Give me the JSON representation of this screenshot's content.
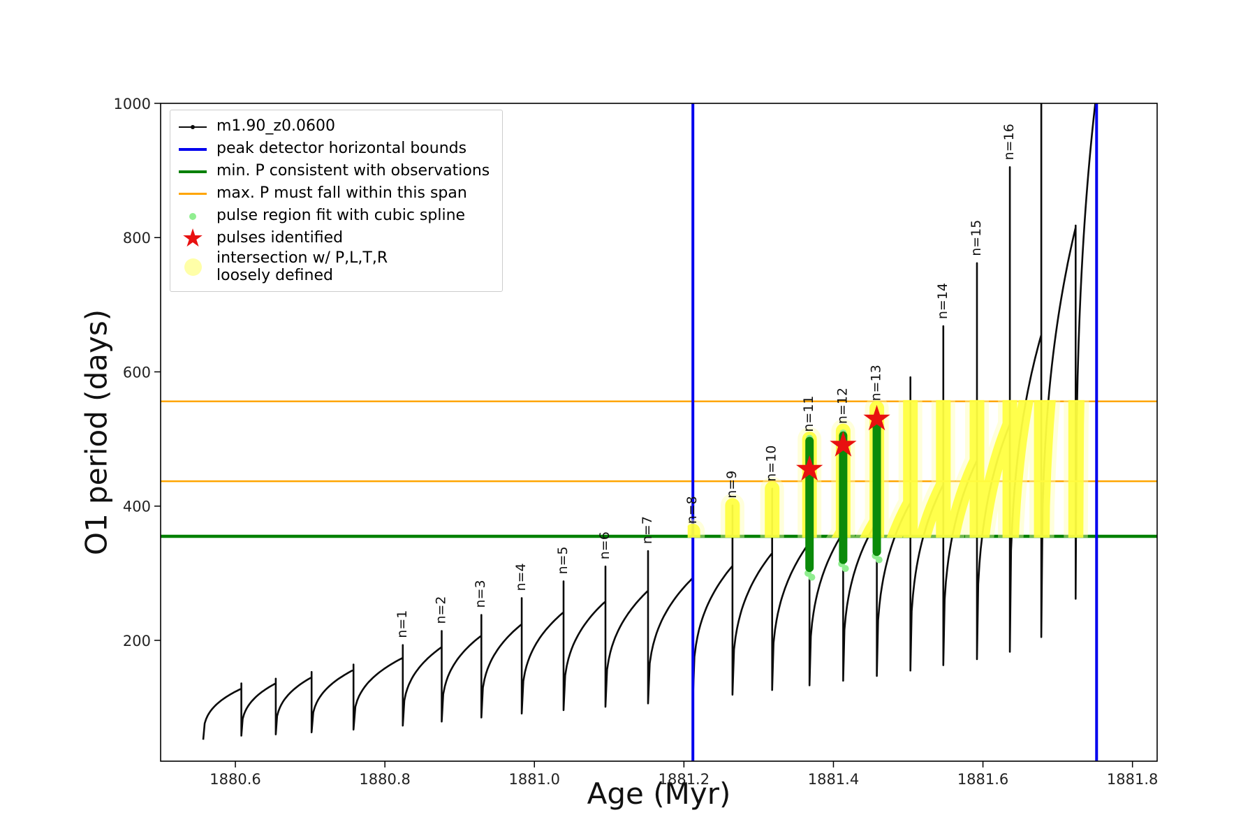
{
  "figure": {
    "xlabel": "Age (Myr)",
    "ylabel": "O1 period (days)",
    "x_tick_labels": [
      "1880.6",
      "1880.8",
      "1881.0",
      "1881.2",
      "1881.4",
      "1881.6",
      "1881.8"
    ],
    "x_tick_values": [
      1880.6,
      1880.8,
      1881.0,
      1881.2,
      1881.4,
      1881.6,
      1881.8
    ],
    "y_tick_labels": [
      "200",
      "400",
      "600",
      "800",
      "1000"
    ],
    "y_tick_values": [
      200,
      400,
      600,
      800,
      1000
    ]
  },
  "colors": {
    "series": "#0b0b0b",
    "bounds": "#0000ee",
    "min_p": "#008000",
    "max_p": "#ffa500",
    "spline": "#90ee90",
    "pulse": "#e81010",
    "intersection": "#ffff3b",
    "intersection_pale": "#ffffb0",
    "bars": "#0a8a0a"
  },
  "legend": {
    "items": [
      {
        "label": "m1.90_z0.0600",
        "type": "line-dot",
        "color": "#0b0b0b"
      },
      {
        "label": "peak detector horizontal bounds",
        "type": "line",
        "color": "#0000ee"
      },
      {
        "label": "min. P consistent with observations",
        "type": "line",
        "color": "#008000"
      },
      {
        "label": "max. P must fall within this span",
        "type": "line-med",
        "color": "#ffa500"
      },
      {
        "label": "pulse region fit with cubic spline",
        "type": "dot",
        "color": "#90ee90"
      },
      {
        "label": "pulses identified",
        "type": "star",
        "color": "#e81010"
      },
      {
        "label": "intersection w/ P,L,T,R\nloosely defined",
        "type": "dot-large",
        "color": "#ffffa8"
      }
    ]
  },
  "chart_data": {
    "type": "line",
    "title": "",
    "xlabel": "Age (Myr)",
    "ylabel": "O1 period (days)",
    "series_name": "m1.90_z0.0600",
    "xlim": [
      1880.5,
      1881.833
    ],
    "ylim": [
      20,
      1000
    ],
    "grid": false,
    "legend_position": "upper left",
    "vlines": [
      1881.212,
      1881.752
    ],
    "hline_green": 355,
    "hlines_orange": [
      437,
      556
    ],
    "band": {
      "x0": 1881.205,
      "x1": 1881.76,
      "y0": 353,
      "y1": 558
    },
    "pulses": [
      {
        "x": 1881.368,
        "y": 456
      },
      {
        "x": 1881.413,
        "y": 492
      },
      {
        "x": 1881.458,
        "y": 531
      }
    ],
    "pulse_regions": [
      {
        "x": 1881.368,
        "y0": 308,
        "y1": 497
      },
      {
        "x": 1881.413,
        "y0": 320,
        "y1": 505
      },
      {
        "x": 1881.458,
        "y0": 332,
        "y1": 520
      }
    ],
    "spline_dots": [
      {
        "x": 1881.366,
        "y": 300
      },
      {
        "x": 1881.371,
        "y": 294
      },
      {
        "x": 1881.411,
        "y": 314
      },
      {
        "x": 1881.416,
        "y": 307
      },
      {
        "x": 1881.456,
        "y": 326
      },
      {
        "x": 1881.461,
        "y": 320
      },
      {
        "x": 1881.368,
        "y": 501
      },
      {
        "x": 1881.413,
        "y": 509
      },
      {
        "x": 1881.458,
        "y": 524
      }
    ],
    "cycles": [
      {
        "x0": 1880.557,
        "x1": 1880.608,
        "yLow": 52,
        "yArc": 128,
        "ySpike": 136,
        "label": ""
      },
      {
        "x0": 1880.608,
        "x1": 1880.654,
        "yLow": 58,
        "yArc": 136,
        "ySpike": 143,
        "label": ""
      },
      {
        "x0": 1880.654,
        "x1": 1880.702,
        "yLow": 60,
        "yArc": 145,
        "ySpike": 153,
        "label": ""
      },
      {
        "x0": 1880.702,
        "x1": 1880.758,
        "yLow": 63,
        "yArc": 156,
        "ySpike": 164,
        "label": ""
      },
      {
        "x0": 1880.758,
        "x1": 1880.824,
        "yLow": 67,
        "yArc": 174,
        "ySpike": 193,
        "label": "n=1"
      },
      {
        "x0": 1880.824,
        "x1": 1880.876,
        "yLow": 73,
        "yArc": 190,
        "ySpike": 214,
        "label": "n=2"
      },
      {
        "x0": 1880.876,
        "x1": 1880.929,
        "yLow": 79,
        "yArc": 207,
        "ySpike": 238,
        "label": "n=3"
      },
      {
        "x0": 1880.929,
        "x1": 1880.983,
        "yLow": 85,
        "yArc": 224,
        "ySpike": 263,
        "label": "n=4"
      },
      {
        "x0": 1880.983,
        "x1": 1881.039,
        "yLow": 91,
        "yArc": 242,
        "ySpike": 288,
        "label": "n=5"
      },
      {
        "x0": 1881.039,
        "x1": 1881.095,
        "yLow": 96,
        "yArc": 258,
        "ySpike": 310,
        "label": "n=6"
      },
      {
        "x0": 1881.095,
        "x1": 1881.152,
        "yLow": 101,
        "yArc": 274,
        "ySpike": 333,
        "label": "n=7"
      },
      {
        "x0": 1881.152,
        "x1": 1881.212,
        "yLow": 106,
        "yArc": 293,
        "ySpike": 363,
        "label": "n=8"
      },
      {
        "x0": 1881.212,
        "x1": 1881.265,
        "yLow": 112,
        "yArc": 311,
        "ySpike": 401,
        "label": "n=9"
      },
      {
        "x0": 1881.265,
        "x1": 1881.318,
        "yLow": 119,
        "yArc": 330,
        "ySpike": 426,
        "label": "n=10"
      },
      {
        "x0": 1881.318,
        "x1": 1881.368,
        "yLow": 126,
        "yArc": 346,
        "ySpike": 500,
        "label": "n=11"
      },
      {
        "x0": 1881.368,
        "x1": 1881.413,
        "yLow": 133,
        "yArc": 361,
        "ySpike": 512,
        "label": "n=12"
      },
      {
        "x0": 1881.413,
        "x1": 1881.458,
        "yLow": 140,
        "yArc": 377,
        "ySpike": 546,
        "label": "n=13"
      },
      {
        "x0": 1881.458,
        "x1": 1881.503,
        "yLow": 147,
        "yArc": 405,
        "ySpike": 592,
        "label": ""
      },
      {
        "x0": 1881.503,
        "x1": 1881.547,
        "yLow": 155,
        "yArc": 432,
        "ySpike": 668,
        "label": "n=14"
      },
      {
        "x0": 1881.547,
        "x1": 1881.592,
        "yLow": 163,
        "yArc": 468,
        "ySpike": 762,
        "label": "n=15"
      },
      {
        "x0": 1881.592,
        "x1": 1881.636,
        "yLow": 172,
        "yArc": 522,
        "ySpike": 905,
        "label": "n=16"
      },
      {
        "x0": 1881.636,
        "x1": 1881.678,
        "yLow": 183,
        "yArc": 655,
        "ySpike": 1070,
        "label": ""
      },
      {
        "x0": 1881.678,
        "x1": 1881.724,
        "yLow": 205,
        "yArc": 815,
        "ySpike": 818,
        "label": ""
      },
      {
        "x0": 1881.724,
        "x1": 1881.758,
        "yLow": 262,
        "yArc": 1070,
        "ySpike": 1075,
        "label": ""
      }
    ]
  }
}
